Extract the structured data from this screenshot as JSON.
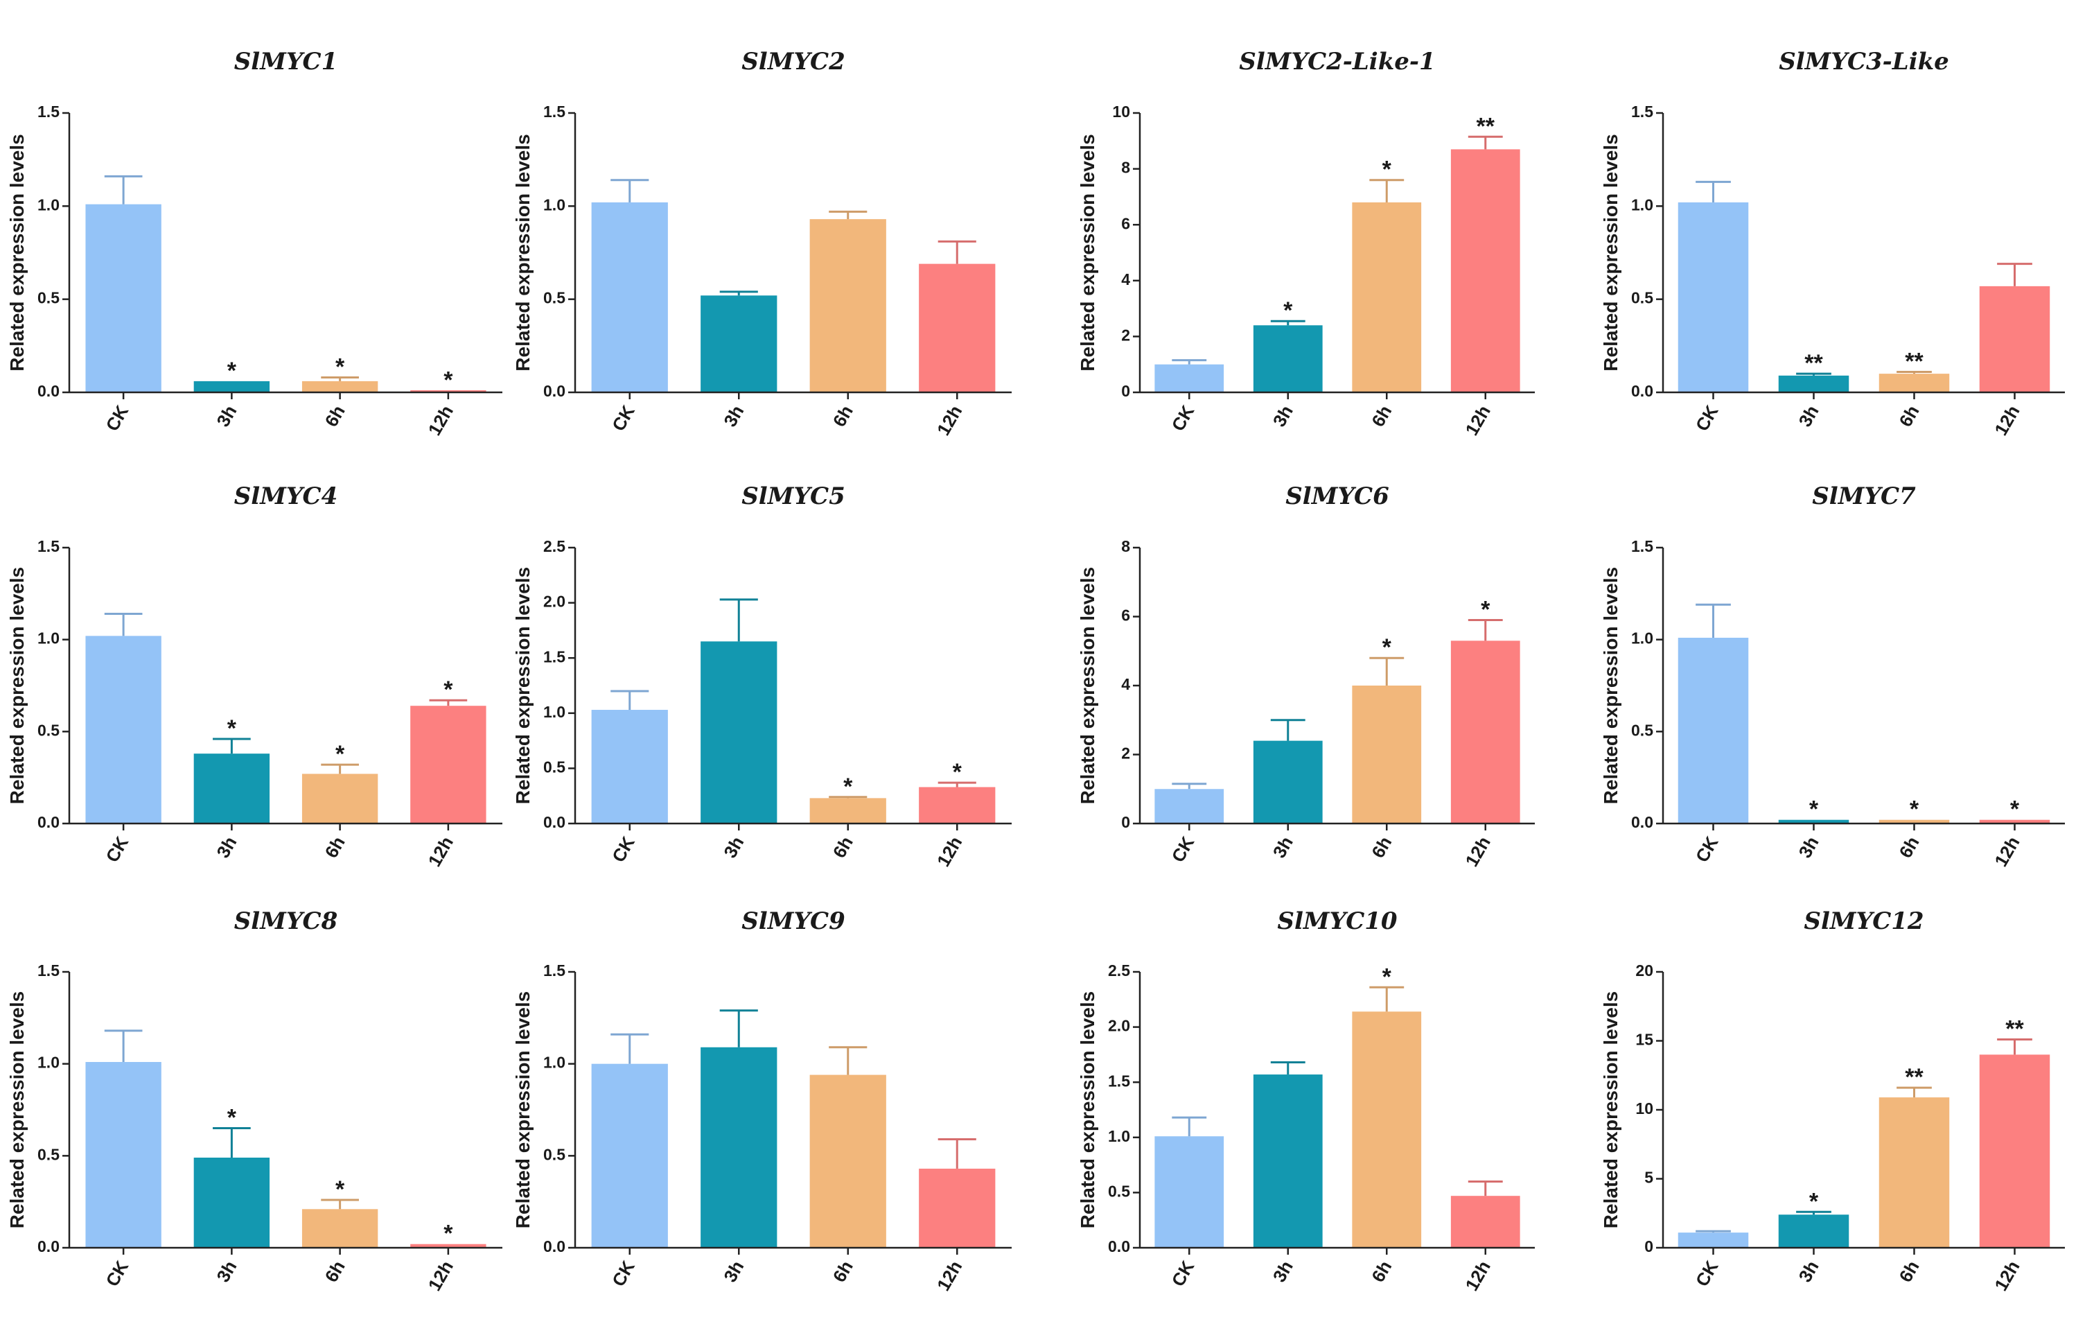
{
  "figure": {
    "categories": [
      "CK",
      "3h",
      "6h",
      "12h"
    ],
    "ylabel": "Related expression levels",
    "colors": [
      "#94c3f7",
      "#1398b0",
      "#f2b77b",
      "#fc8080"
    ]
  },
  "chart_data": [
    {
      "type": "bar",
      "title": "SlMYC1",
      "categories": [
        "CK",
        "3h",
        "6h",
        "12h"
      ],
      "values": [
        1.01,
        0.06,
        0.06,
        0.01
      ],
      "errors": [
        0.15,
        0.0,
        0.02,
        0.0
      ],
      "significance": [
        "",
        "*",
        "*",
        "*"
      ],
      "ylim": [
        0,
        1.5
      ],
      "yticks": [
        "0.0",
        "0.5",
        "1.0",
        "1.5"
      ],
      "ylabel": "Related expression levels"
    },
    {
      "type": "bar",
      "title": "SlMYC2",
      "categories": [
        "CK",
        "3h",
        "6h",
        "12h"
      ],
      "values": [
        1.02,
        0.52,
        0.93,
        0.69
      ],
      "errors": [
        0.12,
        0.02,
        0.04,
        0.12
      ],
      "significance": [
        "",
        "",
        "",
        ""
      ],
      "ylim": [
        0,
        1.5
      ],
      "yticks": [
        "0.0",
        "0.5",
        "1.0",
        "1.5"
      ],
      "ylabel": "Related expression levels"
    },
    {
      "type": "bar",
      "title": "SlMYC2-Like-1",
      "categories": [
        "CK",
        "3h",
        "6h",
        "12h"
      ],
      "values": [
        1.0,
        2.4,
        6.8,
        8.7
      ],
      "errors": [
        0.15,
        0.15,
        0.8,
        0.45
      ],
      "significance": [
        "",
        "*",
        "*",
        "**"
      ],
      "ylim": [
        0,
        10
      ],
      "yticks": [
        "0",
        "2",
        "4",
        "6",
        "8",
        "10"
      ],
      "ylabel": "Related expression levels"
    },
    {
      "type": "bar",
      "title": "SlMYC3-Like",
      "categories": [
        "CK",
        "3h",
        "6h",
        "12h"
      ],
      "values": [
        1.02,
        0.09,
        0.1,
        0.57
      ],
      "errors": [
        0.11,
        0.01,
        0.01,
        0.12
      ],
      "significance": [
        "",
        "**",
        "**",
        ""
      ],
      "ylim": [
        0,
        1.5
      ],
      "yticks": [
        "0.0",
        "0.5",
        "1.0",
        "1.5"
      ],
      "ylabel": "Related expression levels"
    },
    {
      "type": "bar",
      "title": "SlMYC4",
      "categories": [
        "CK",
        "3h",
        "6h",
        "12h"
      ],
      "values": [
        1.02,
        0.38,
        0.27,
        0.64
      ],
      "errors": [
        0.12,
        0.08,
        0.05,
        0.03
      ],
      "significance": [
        "",
        "*",
        "*",
        "*"
      ],
      "ylim": [
        0,
        1.5
      ],
      "yticks": [
        "0.0",
        "0.5",
        "1.0",
        "1.5"
      ],
      "ylabel": "Related expression levels"
    },
    {
      "type": "bar",
      "title": "SlMYC5",
      "categories": [
        "CK",
        "3h",
        "6h",
        "12h"
      ],
      "values": [
        1.03,
        1.65,
        0.23,
        0.33
      ],
      "errors": [
        0.17,
        0.38,
        0.01,
        0.04
      ],
      "significance": [
        "",
        "",
        "*",
        "*"
      ],
      "ylim": [
        0,
        2.5
      ],
      "yticks": [
        "0.0",
        "0.5",
        "1.0",
        "1.5",
        "2.0",
        "2.5"
      ],
      "ylabel": "Related expression levels"
    },
    {
      "type": "bar",
      "title": "SlMYC6",
      "categories": [
        "CK",
        "3h",
        "6h",
        "12h"
      ],
      "values": [
        1.0,
        2.4,
        4.0,
        5.3
      ],
      "errors": [
        0.15,
        0.6,
        0.8,
        0.6
      ],
      "significance": [
        "",
        "",
        "*",
        "*"
      ],
      "ylim": [
        0,
        8
      ],
      "yticks": [
        "0",
        "2",
        "4",
        "6",
        "8"
      ],
      "ylabel": "Related expression levels"
    },
    {
      "type": "bar",
      "title": "SlMYC7",
      "categories": [
        "CK",
        "3h",
        "6h",
        "12h"
      ],
      "values": [
        1.01,
        0.02,
        0.02,
        0.02
      ],
      "errors": [
        0.18,
        0.0,
        0.0,
        0.0
      ],
      "significance": [
        "",
        "*",
        "*",
        "*"
      ],
      "ylim": [
        0,
        1.5
      ],
      "yticks": [
        "0.0",
        "0.5",
        "1.0",
        "1.5"
      ],
      "ylabel": "Related expression levels"
    },
    {
      "type": "bar",
      "title": "SlMYC8",
      "categories": [
        "CK",
        "3h",
        "6h",
        "12h"
      ],
      "values": [
        1.01,
        0.49,
        0.21,
        0.02
      ],
      "errors": [
        0.17,
        0.16,
        0.05,
        0.0
      ],
      "significance": [
        "",
        "*",
        "*",
        "*"
      ],
      "ylim": [
        0,
        1.5
      ],
      "yticks": [
        "0.0",
        "0.5",
        "1.0",
        "1.5"
      ],
      "ylabel": "Related expression levels"
    },
    {
      "type": "bar",
      "title": "SlMYC9",
      "categories": [
        "CK",
        "3h",
        "6h",
        "12h"
      ],
      "values": [
        1.0,
        1.09,
        0.94,
        0.43
      ],
      "errors": [
        0.16,
        0.2,
        0.15,
        0.16
      ],
      "significance": [
        "",
        "",
        "",
        ""
      ],
      "ylim": [
        0,
        1.5
      ],
      "yticks": [
        "0.0",
        "0.5",
        "1.0",
        "1.5"
      ],
      "ylabel": "Related expression levels"
    },
    {
      "type": "bar",
      "title": "SlMYC10",
      "categories": [
        "CK",
        "3h",
        "6h",
        "12h"
      ],
      "values": [
        1.01,
        1.57,
        2.14,
        0.47
      ],
      "errors": [
        0.17,
        0.11,
        0.22,
        0.13
      ],
      "significance": [
        "",
        "",
        "*",
        ""
      ],
      "ylim": [
        0,
        2.5
      ],
      "yticks": [
        "0.0",
        "0.5",
        "1.0",
        "1.5",
        "2.0",
        "2.5"
      ],
      "ylabel": "Related expression levels"
    },
    {
      "type": "bar",
      "title": "SlMYC12",
      "categories": [
        "CK",
        "3h",
        "6h",
        "12h"
      ],
      "values": [
        1.1,
        2.4,
        10.9,
        14.0
      ],
      "errors": [
        0.1,
        0.2,
        0.7,
        1.1
      ],
      "significance": [
        "",
        "*",
        "**",
        "**"
      ],
      "ylim": [
        0,
        20
      ],
      "yticks": [
        "0",
        "5",
        "10",
        "15",
        "20"
      ],
      "ylabel": "Related expression levels"
    }
  ]
}
